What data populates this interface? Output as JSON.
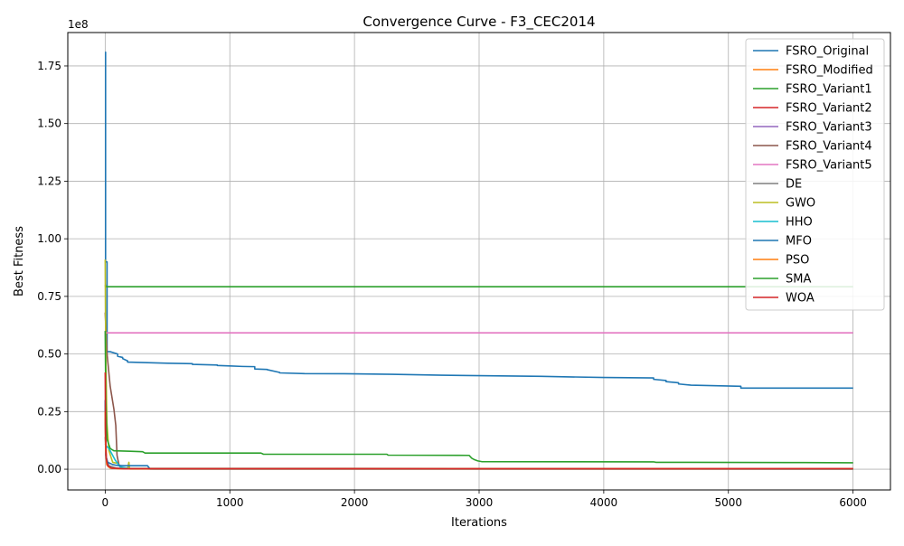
{
  "chart_data": {
    "type": "line",
    "title": "Convergence Curve - F3_CEC2014",
    "xlabel": "Iterations",
    "ylabel": "Best Fitness",
    "y_multiplier": "1e8",
    "xlim": [
      -300,
      6300
    ],
    "ylim": [
      -0.09,
      1.895
    ],
    "x_ticks": [
      0,
      1000,
      2000,
      3000,
      4000,
      5000,
      6000
    ],
    "x_tick_labels": [
      "0",
      "1000",
      "2000",
      "3000",
      "4000",
      "5000",
      "6000"
    ],
    "y_ticks": [
      0,
      0.25,
      0.5,
      0.75,
      1.0,
      1.25,
      1.5,
      1.75
    ],
    "y_tick_labels": [
      "0.00",
      "0.25",
      "0.50",
      "0.75",
      "1.00",
      "1.25",
      "1.50",
      "1.75"
    ],
    "grid": true,
    "legend_position": "upper right",
    "series": [
      {
        "name": "FSRO_Original",
        "color": "#1f77b4",
        "x": [
          0,
          3,
          3,
          15,
          15,
          40,
          40,
          100,
          100,
          140,
          140,
          180,
          180,
          500,
          500,
          700,
          700,
          900,
          900,
          1000,
          1000,
          1100,
          1100,
          1200,
          1200,
          1300,
          1300,
          1400,
          1400,
          1600,
          1600,
          2000,
          2000,
          2300,
          2300,
          2500,
          2500,
          2700,
          2700,
          3000,
          3000,
          3500,
          3500,
          4000,
          4000,
          4400,
          4400,
          4500,
          4500,
          4600,
          4600,
          4700,
          4700,
          5100,
          5100,
          6000
        ],
        "y": [
          1.81,
          1.81,
          0.9,
          0.9,
          0.51,
          0.51,
          0.51,
          0.5,
          0.49,
          0.485,
          0.48,
          0.47,
          0.465,
          0.46,
          0.46,
          0.458,
          0.455,
          0.452,
          0.45,
          0.448,
          0.448,
          0.446,
          0.446,
          0.445,
          0.435,
          0.433,
          0.432,
          0.42,
          0.418,
          0.415,
          0.415,
          0.414,
          0.414,
          0.412,
          0.412,
          0.41,
          0.41,
          0.408,
          0.408,
          0.406,
          0.406,
          0.403,
          0.403,
          0.398,
          0.398,
          0.396,
          0.39,
          0.385,
          0.38,
          0.375,
          0.37,
          0.365,
          0.365,
          0.36,
          0.352,
          0.352
        ]
      },
      {
        "name": "FSRO_Modified",
        "color": "#ff7f0e",
        "x": [
          0,
          5,
          10,
          25,
          60,
          200,
          6000
        ],
        "y": [
          0.28,
          0.12,
          0.04,
          0.01,
          0.004,
          0.002,
          0.002
        ]
      },
      {
        "name": "FSRO_Variant1",
        "color": "#2ca02c",
        "x": [
          0,
          2,
          2,
          6000
        ],
        "y": [
          0.8,
          0.8,
          0.792,
          0.792
        ]
      },
      {
        "name": "FSRO_Variant2",
        "color": "#d62728",
        "x": [
          0,
          5,
          20,
          60,
          200,
          6000
        ],
        "y": [
          0.22,
          0.06,
          0.015,
          0.004,
          0.002,
          0.002
        ]
      },
      {
        "name": "FSRO_Variant3",
        "color": "#9467bd",
        "x": [
          0,
          4,
          15,
          50,
          200,
          6000
        ],
        "y": [
          0.3,
          0.08,
          0.02,
          0.005,
          0.002,
          0.002
        ]
      },
      {
        "name": "FSRO_Variant4",
        "color": "#8c564b",
        "x": [
          0,
          15,
          40,
          70,
          85,
          95,
          110,
          140,
          6000
        ],
        "y": [
          0.68,
          0.5,
          0.36,
          0.26,
          0.19,
          0.06,
          0.02,
          0.004,
          0.002
        ]
      },
      {
        "name": "FSRO_Variant5",
        "color": "#e377c2",
        "x": [
          0,
          2,
          2,
          6000
        ],
        "y": [
          0.6,
          0.6,
          0.592,
          0.592
        ]
      },
      {
        "name": "DE",
        "color": "#7f7f7f",
        "x": [
          0,
          8,
          30,
          100,
          400,
          6000
        ],
        "y": [
          0.14,
          0.05,
          0.015,
          0.003,
          0.001,
          0.001
        ]
      },
      {
        "name": "GWO",
        "color": "#bcbd22",
        "x": [
          0,
          2,
          6,
          14,
          30,
          60,
          100,
          120,
          150,
          180,
          190,
          195,
          200,
          6000
        ],
        "y": [
          0.91,
          0.7,
          0.45,
          0.2,
          0.08,
          0.03,
          0.025,
          0.01,
          0.005,
          0.004,
          0.03,
          0.004,
          0.001,
          0.001
        ]
      },
      {
        "name": "HHO",
        "color": "#17becf",
        "x": [
          0,
          10,
          30,
          50,
          80,
          120,
          200,
          6000
        ],
        "y": [
          0.11,
          0.1,
          0.09,
          0.07,
          0.04,
          0.01,
          0.002,
          0.001
        ]
      },
      {
        "name": "MFO",
        "color": "#1f77b4",
        "x": [
          0,
          5,
          20,
          60,
          100,
          150,
          340,
          360,
          6000
        ],
        "y": [
          0.3,
          0.06,
          0.03,
          0.02,
          0.016,
          0.015,
          0.015,
          0.001,
          0.001
        ]
      },
      {
        "name": "PSO",
        "color": "#ff7f0e",
        "x": [
          0,
          4,
          12,
          40,
          100,
          6000
        ],
        "y": [
          0.25,
          0.08,
          0.02,
          0.005,
          0.002,
          0.002
        ]
      },
      {
        "name": "SMA",
        "color": "#2ca02c",
        "x": [
          0,
          5,
          15,
          40,
          70,
          200,
          300,
          320,
          1250,
          1270,
          2260,
          2270,
          2920,
          2940,
          2960,
          2990,
          3020,
          4400,
          4420,
          5500,
          6000
        ],
        "y": [
          0.6,
          0.3,
          0.13,
          0.09,
          0.08,
          0.078,
          0.076,
          0.07,
          0.07,
          0.065,
          0.065,
          0.061,
          0.06,
          0.048,
          0.042,
          0.036,
          0.033,
          0.032,
          0.03,
          0.029,
          0.028
        ]
      },
      {
        "name": "WOA",
        "color": "#d62728",
        "x": [
          0,
          3,
          8,
          20,
          50,
          150,
          6000
        ],
        "y": [
          0.42,
          0.15,
          0.05,
          0.015,
          0.005,
          0.002,
          0.002
        ]
      }
    ]
  }
}
